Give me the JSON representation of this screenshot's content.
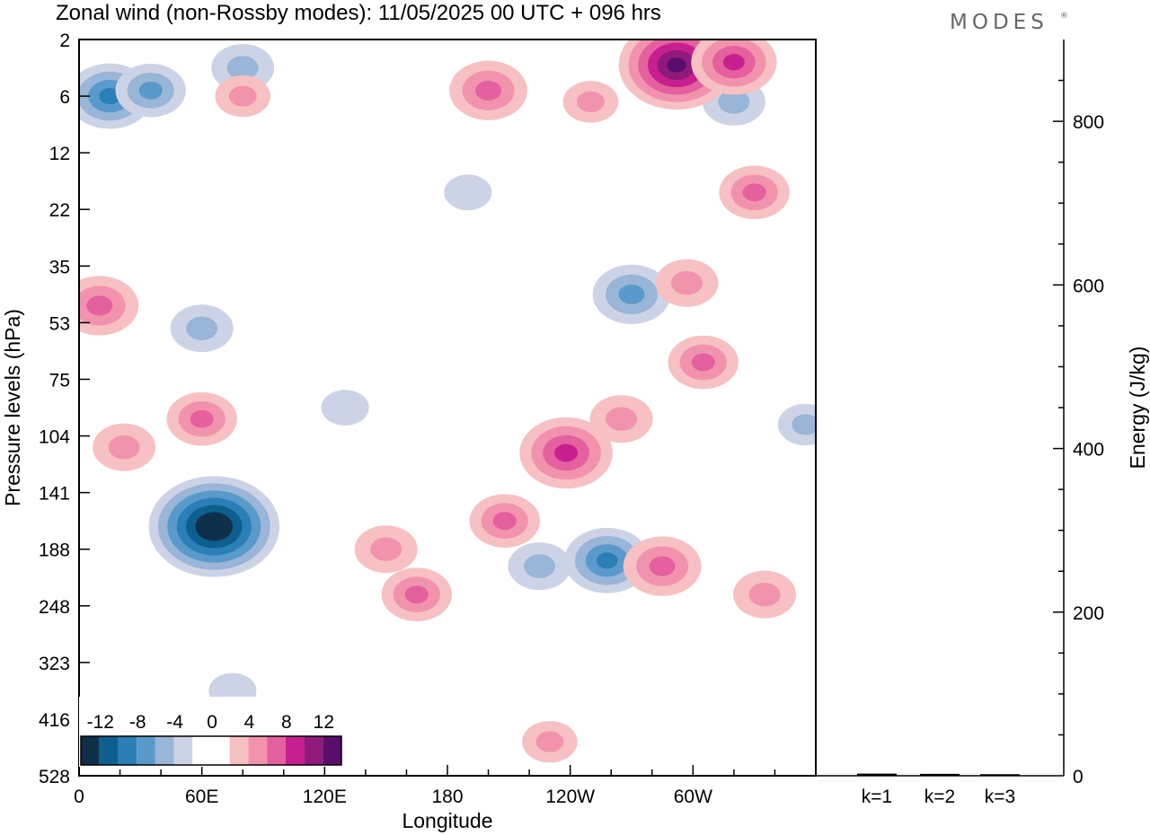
{
  "chart_data": [
    {
      "type": "heatmap",
      "title": "Zonal wind (non-Rossby modes):  11/05/2025  00 UTC  + 096 hrs",
      "xlabel": "Longitude",
      "ylabel": "Pressure levels (hPa)",
      "x_ticks": [
        "0",
        "60E",
        "120E",
        "180",
        "120W",
        "60W"
      ],
      "x_tick_degrees": [
        0,
        60,
        120,
        180,
        240,
        300
      ],
      "xlim": [
        0,
        360
      ],
      "y_ticks": [
        "2",
        "6",
        "12",
        "22",
        "35",
        "53",
        "75",
        "104",
        "141",
        "188",
        "248",
        "323",
        "416",
        "528"
      ],
      "y_scale": "pressure levels, top-down, equally spaced",
      "colorbar": {
        "labels": [
          "-12",
          "-8",
          "-4",
          "0",
          "4",
          "8",
          "12"
        ],
        "colors": [
          "#0e2f4a",
          "#0d5f8e",
          "#2a7fb6",
          "#5a9acb",
          "#99b5d7",
          "#cdd3e6",
          "#ffffff",
          "#ffffff",
          "#f7c0c2",
          "#f293ad",
          "#e5609f",
          "#c7208e",
          "#8f1a7c",
          "#5a0e6b"
        ]
      },
      "features": [
        {
          "lon": 66,
          "lev": 8.6,
          "value": -14
        },
        {
          "lon": 15,
          "lev": 1.0,
          "value": -8
        },
        {
          "lon": 35,
          "lev": 0.9,
          "value": -6
        },
        {
          "lon": 80,
          "lev": 0.5,
          "value": -5
        },
        {
          "lon": 270,
          "lev": 4.5,
          "value": -7
        },
        {
          "lon": 258,
          "lev": 9.2,
          "value": -8
        },
        {
          "lon": 225,
          "lev": 9.3,
          "value": -5
        },
        {
          "lon": 320,
          "lev": 1.1,
          "value": -5
        },
        {
          "lon": 60,
          "lev": 5.1,
          "value": -5
        },
        {
          "lon": 130,
          "lev": 6.5,
          "value": -3
        },
        {
          "lon": 190,
          "lev": 2.7,
          "value": -3
        },
        {
          "lon": 355,
          "lev": 6.8,
          "value": -4
        },
        {
          "lon": 75,
          "lev": 11.5,
          "value": -3
        },
        {
          "lon": 200,
          "lev": 0.9,
          "value": 7
        },
        {
          "lon": 292,
          "lev": 0.45,
          "value": 12
        },
        {
          "lon": 320,
          "lev": 0.4,
          "value": 8
        },
        {
          "lon": 10,
          "lev": 4.7,
          "value": 7
        },
        {
          "lon": 60,
          "lev": 6.7,
          "value": 6
        },
        {
          "lon": 22,
          "lev": 7.2,
          "value": 5
        },
        {
          "lon": 150,
          "lev": 9.0,
          "value": 5
        },
        {
          "lon": 165,
          "lev": 9.8,
          "value": 6
        },
        {
          "lon": 208,
          "lev": 8.5,
          "value": 6
        },
        {
          "lon": 238,
          "lev": 7.3,
          "value": 9
        },
        {
          "lon": 285,
          "lev": 9.3,
          "value": 7
        },
        {
          "lon": 305,
          "lev": 5.7,
          "value": 6
        },
        {
          "lon": 297,
          "lev": 4.3,
          "value": 5
        },
        {
          "lon": 330,
          "lev": 2.7,
          "value": 6
        },
        {
          "lon": 335,
          "lev": 9.8,
          "value": 5
        },
        {
          "lon": 265,
          "lev": 6.7,
          "value": 5
        },
        {
          "lon": 230,
          "lev": 12.4,
          "value": 4
        },
        {
          "lon": 80,
          "lev": 1.0,
          "value": 4
        },
        {
          "lon": 250,
          "lev": 1.1,
          "value": 4
        }
      ]
    },
    {
      "type": "bar",
      "categories": [
        "k=1",
        "k=2",
        "k=3"
      ],
      "values": [
        1.5,
        1.2,
        0.8
      ],
      "ylabel": "Energy (J/kg)",
      "y_ticks": [
        "0",
        "200",
        "400",
        "600",
        "800"
      ],
      "ylim": [
        0,
        900
      ]
    }
  ],
  "brand": "MODES",
  "brand_mark": "®"
}
